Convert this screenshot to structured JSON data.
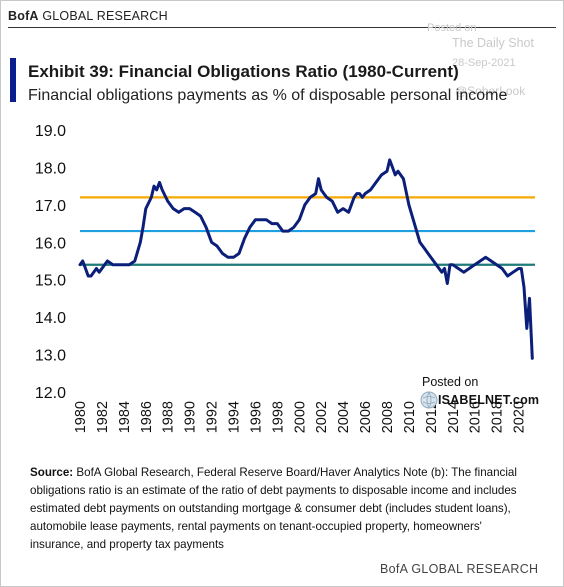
{
  "header": {
    "brand_bold": "BofA",
    "brand_rest": " GLOBAL RESEARCH",
    "title": "Exhibit 39: Financial Obligations Ratio (1980-Current)",
    "subtitle": "Financial obligations payments as % of disposable personal income"
  },
  "watermark": {
    "posted": "Posted on",
    "site": "The Daily Shot",
    "date": "28-Sep-2021",
    "handle": "@SoberLook"
  },
  "isabelnet": {
    "posted": "Posted on",
    "site": "ISABELNET.com"
  },
  "source": {
    "label": "Source:",
    "text": " BofA Global Research, Federal Reserve Board/Haver Analytics Note (b): The financial obligations ratio is an estimate of the ratio of debt payments to disposable income and includes estimated debt payments on outstanding mortgage & consumer debt (includes student loans), automobile lease payments, rental payments on tenant-occupied property, homeowners' insurance, and property tax payments"
  },
  "footer": {
    "brand": "BofA GLOBAL RESEARCH"
  },
  "colors": {
    "series": "#0b1f7a",
    "line_high": "#f5a800",
    "line_mid": "#1ea0e0",
    "line_low": "#1f7a7a",
    "accent": "#0a1f8f"
  },
  "chart_data": {
    "type": "line",
    "title": "Exhibit 39: Financial Obligations Ratio (1980-Current)",
    "ylabel": "",
    "xlabel": "",
    "ylim": [
      12.0,
      19.0
    ],
    "xlim": [
      1980,
      2021.5
    ],
    "yticks": [
      "19.0",
      "18.0",
      "17.0",
      "16.0",
      "15.0",
      "14.0",
      "13.0",
      "12.0"
    ],
    "xticks": [
      "1980",
      "1982",
      "1984",
      "1986",
      "1988",
      "1990",
      "1992",
      "1994",
      "1996",
      "1998",
      "2000",
      "2002",
      "2004",
      "2006",
      "2008",
      "2010",
      "2012",
      "2014",
      "2016",
      "2018",
      "2020"
    ],
    "grid": false,
    "reference_lines": [
      17.2,
      16.3,
      15.4
    ],
    "series": [
      {
        "name": "",
        "x": [
          1980.0,
          1980.25,
          1980.5,
          1980.75,
          1981.0,
          1981.25,
          1981.5,
          1981.75,
          1982.0,
          1982.5,
          1983.0,
          1983.5,
          1984.0,
          1984.5,
          1985.0,
          1985.5,
          1985.75,
          1986.0,
          1986.5,
          1986.75,
          1987.0,
          1987.25,
          1987.5,
          1988.0,
          1988.5,
          1989.0,
          1989.5,
          1990.0,
          1990.5,
          1991.0,
          1991.5,
          1992.0,
          1992.5,
          1993.0,
          1993.5,
          1994.0,
          1994.5,
          1995.0,
          1995.5,
          1996.0,
          1996.5,
          1997.0,
          1997.5,
          1998.0,
          1998.5,
          1999.0,
          1999.5,
          2000.0,
          2000.5,
          2001.0,
          2001.5,
          2001.75,
          2002.0,
          2002.25,
          2002.5,
          2003.0,
          2003.5,
          2004.0,
          2004.5,
          2005.0,
          2005.25,
          2005.5,
          2005.75,
          2006.0,
          2006.5,
          2007.0,
          2007.5,
          2008.0,
          2008.25,
          2008.5,
          2008.75,
          2009.0,
          2009.5,
          2010.0,
          2010.5,
          2011.0,
          2011.5,
          2012.0,
          2012.5,
          2013.0,
          2013.25,
          2013.5,
          2013.75,
          2014.0,
          2014.5,
          2015.0,
          2015.5,
          2016.0,
          2016.5,
          2017.0,
          2017.5,
          2018.0,
          2018.5,
          2019.0,
          2019.5,
          2020.0,
          2020.25,
          2020.5,
          2020.75,
          2021.0,
          2021.25
        ],
        "y": [
          15.4,
          15.5,
          15.3,
          15.1,
          15.1,
          15.2,
          15.3,
          15.2,
          15.3,
          15.5,
          15.4,
          15.4,
          15.4,
          15.4,
          15.5,
          16.0,
          16.4,
          16.9,
          17.2,
          17.5,
          17.4,
          17.6,
          17.4,
          17.1,
          16.9,
          16.8,
          16.9,
          16.9,
          16.8,
          16.7,
          16.4,
          16.0,
          15.9,
          15.7,
          15.6,
          15.6,
          15.7,
          16.1,
          16.4,
          16.6,
          16.6,
          16.6,
          16.5,
          16.5,
          16.3,
          16.3,
          16.4,
          16.6,
          17.0,
          17.2,
          17.3,
          17.7,
          17.4,
          17.3,
          17.2,
          17.1,
          16.8,
          16.9,
          16.8,
          17.2,
          17.3,
          17.3,
          17.2,
          17.3,
          17.4,
          17.6,
          17.8,
          17.9,
          18.2,
          18.0,
          17.8,
          17.9,
          17.7,
          17.0,
          16.5,
          16.0,
          15.8,
          15.6,
          15.4,
          15.2,
          15.3,
          14.9,
          15.4,
          15.4,
          15.3,
          15.2,
          15.3,
          15.4,
          15.5,
          15.6,
          15.5,
          15.4,
          15.3,
          15.1,
          15.2,
          15.3,
          15.3,
          14.8,
          13.7,
          14.5,
          12.9
        ]
      }
    ]
  }
}
